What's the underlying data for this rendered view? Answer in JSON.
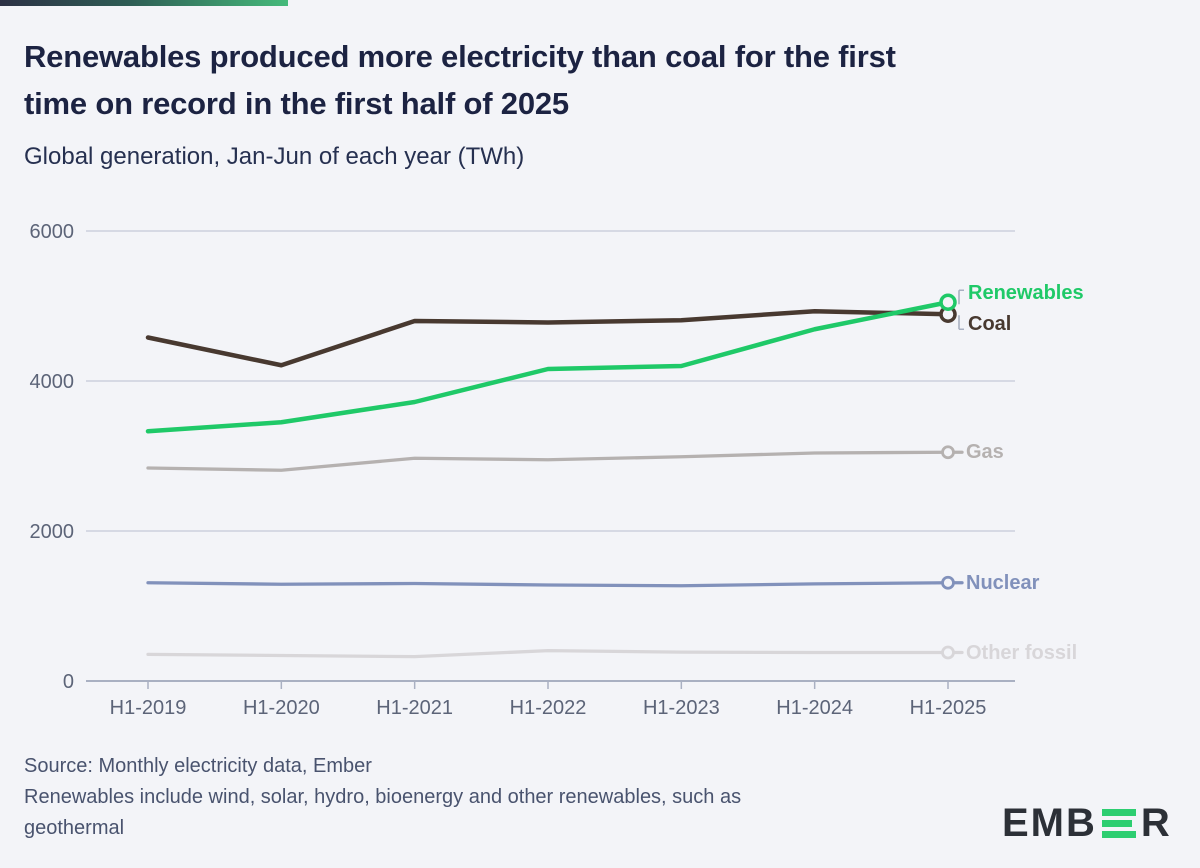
{
  "header": {
    "title_lines": [
      "Renewables produced more electricity than coal for the first",
      "time on record in the first half of 2025"
    ],
    "subtitle": "Global generation, Jan-Jun of each year (TWh)"
  },
  "chart_data": {
    "type": "line",
    "title": "Renewables produced more electricity than coal for the first time on record in the first half of 2025",
    "subtitle": "Global generation, Jan-Jun of each year (TWh)",
    "categories": [
      "H1-2019",
      "H1-2020",
      "H1-2021",
      "H1-2022",
      "H1-2023",
      "H1-2024",
      "H1-2025"
    ],
    "xlabel": "",
    "ylabel": "TWh",
    "ylim": [
      0,
      6000
    ],
    "yticks": [
      0,
      2000,
      4000,
      6000
    ],
    "grid": "horizontal",
    "legend_position": "end-of-line-labels",
    "axis_text_color": "#5c6478",
    "gridline_color": "#ccd0de",
    "baseline_color": "#a9b0c2",
    "marker_fill": "#f3f4f8",
    "series": [
      {
        "name": "Renewables",
        "color": "#1fc968",
        "emphasis": true,
        "label_dy": -9,
        "values": [
          3330,
          3450,
          3720,
          4160,
          4200,
          4690,
          5050
        ]
      },
      {
        "name": "Coal",
        "color": "#483930",
        "emphasis": true,
        "label_dy": 10,
        "values": [
          4580,
          4210,
          4800,
          4780,
          4810,
          4930,
          4890
        ]
      },
      {
        "name": "Gas",
        "color": "#b5b1b0",
        "emphasis": false,
        "label_dy": 0,
        "values": [
          2840,
          2810,
          2970,
          2950,
          2990,
          3040,
          3050
        ]
      },
      {
        "name": "Nuclear",
        "color": "#8191bb",
        "emphasis": false,
        "label_dy": 0,
        "values": [
          1310,
          1290,
          1300,
          1280,
          1270,
          1295,
          1310
        ]
      },
      {
        "name": "Other fossil",
        "color": "#d8d6d9",
        "emphasis": false,
        "label_dy": 0,
        "values": [
          355,
          340,
          325,
          405,
          385,
          380,
          380
        ]
      }
    ]
  },
  "footer": {
    "lines": [
      "Source: Monthly electricity data, Ember",
      "Renewables include wind, solar, hydro, bioenergy and other renewables, such as",
      "geothermal"
    ]
  },
  "logo": {
    "prefix": "EMB",
    "suffix": "R",
    "name": "EMBER",
    "bars_color": "#2dce71",
    "text_color": "#2c3037"
  },
  "accent_bar": {
    "gradient_from": "#2c3145",
    "gradient_mid": "#2e5d55",
    "gradient_to": "#45ba7b"
  }
}
